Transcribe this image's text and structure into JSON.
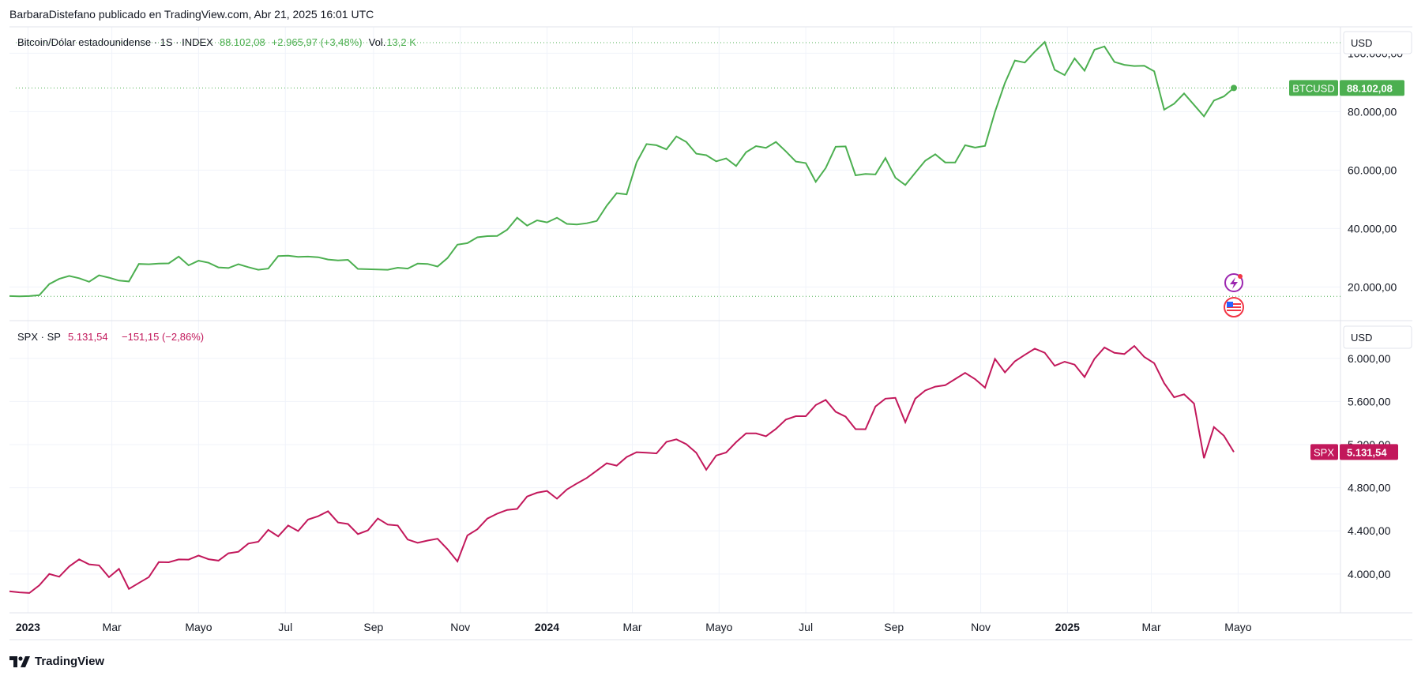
{
  "header": {
    "attribution": "BarbaraDistefano publicado en TradingView.com, Abr 21, 2025 16:01 UTC"
  },
  "footer": {
    "brand": "TradingView"
  },
  "colors": {
    "btc": "#4caf50",
    "spx": "#c2185b",
    "grid": "#f0f3fa",
    "axis_text": "#131722"
  },
  "panes": {
    "top": {
      "symbol": "Bitcoin/Dólar estadounidense · 1S · INDEX",
      "last": "88.102,08",
      "change": "+2.965,97 (+3,48%)",
      "vol_label": "Vol.",
      "vol_value": "13,2 K",
      "currency": "USD",
      "tag_name": "BTCUSD",
      "tag_value": "88.102,08"
    },
    "bottom": {
      "symbol": "SPX · SP",
      "last": "5.131,54",
      "change": "−151,15 (−2,86%)",
      "currency": "USD",
      "tag_name": "SPX",
      "tag_value": "5.131,54"
    }
  },
  "icons": {
    "top_1": "lightning-icon",
    "top_2": "us-flag-icon"
  },
  "chart_data": [
    {
      "type": "line",
      "title": "Bitcoin/Dólar estadounidense · 1S · INDEX",
      "series": [
        {
          "name": "BTCUSD",
          "values": [
            16900,
            16800,
            16900,
            17200,
            21000,
            22800,
            23800,
            23000,
            21800,
            24000,
            23200,
            22200,
            21900,
            27900,
            27800,
            28000,
            28100,
            30400,
            27400,
            29000,
            28300,
            26700,
            26500,
            27800,
            26800,
            25900,
            26300,
            30600,
            30700,
            30300,
            30400,
            30200,
            29400,
            29100,
            29300,
            26200,
            26100,
            26000,
            25900,
            26600,
            26300,
            28000,
            27900,
            27000,
            29900,
            34500,
            35000,
            37000,
            37400,
            37500,
            39600,
            43700,
            41000,
            42800,
            42100,
            43700,
            41600,
            41400,
            41800,
            42600,
            47800,
            52100,
            51700,
            62600,
            68900,
            68500,
            67100,
            71500,
            69600,
            65600,
            65100,
            63000,
            64000,
            61400,
            66100,
            68200,
            67600,
            69600,
            66400,
            62900,
            62400,
            56000,
            60700,
            68000,
            68100,
            58200,
            58700,
            58500,
            64100,
            57400,
            54900,
            59100,
            63200,
            65400,
            62600,
            62600,
            68500,
            67700,
            68300,
            79900,
            89800,
            97500,
            96800,
            100500,
            103800,
            94300,
            92500,
            98200,
            94000,
            101200,
            102300,
            97000,
            96000,
            95600,
            95700,
            93800,
            80700,
            82700,
            86200,
            82300,
            78400,
            83800,
            85200,
            88100
          ]
        }
      ],
      "x_start": "2022-12-19",
      "x_step_days": 7,
      "x_ticks": [
        {
          "label": "2023",
          "date": "2023-01-01",
          "bold": true
        },
        {
          "label": "Mar",
          "date": "2023-03-01"
        },
        {
          "label": "Mayo",
          "date": "2023-05-01"
        },
        {
          "label": "Jul",
          "date": "2023-07-01"
        },
        {
          "label": "Sep",
          "date": "2023-09-01"
        },
        {
          "label": "Nov",
          "date": "2023-11-01"
        },
        {
          "label": "2024",
          "date": "2024-01-01",
          "bold": true
        },
        {
          "label": "Mar",
          "date": "2024-03-01"
        },
        {
          "label": "Mayo",
          "date": "2024-05-01"
        },
        {
          "label": "Jul",
          "date": "2024-07-01"
        },
        {
          "label": "Sep",
          "date": "2024-09-01"
        },
        {
          "label": "Nov",
          "date": "2024-11-01"
        },
        {
          "label": "2025",
          "date": "2025-01-01",
          "bold": true
        },
        {
          "label": "Mar",
          "date": "2025-03-01"
        },
        {
          "label": "Mayo",
          "date": "2025-05-01"
        }
      ],
      "y_ticks": [
        {
          "label": "20.000,00",
          "value": 20000
        },
        {
          "label": "40.000,00",
          "value": 40000
        },
        {
          "label": "60.000,00",
          "value": 60000
        },
        {
          "label": "80.000,00",
          "value": 80000
        },
        {
          "label": "100.000,00",
          "value": 100000
        }
      ],
      "ylim": [
        8500,
        109000
      ],
      "grid": true
    },
    {
      "type": "line",
      "title": "SPX · SP",
      "series": [
        {
          "name": "SPX",
          "values": [
            3840,
            3830,
            3824,
            3895,
            4000,
            3975,
            4070,
            4136,
            4090,
            4080,
            3970,
            4048,
            3862,
            3917,
            3971,
            4110,
            4109,
            4135,
            4134,
            4171,
            4137,
            4124,
            4192,
            4206,
            4282,
            4299,
            4409,
            4349,
            4450,
            4398,
            4505,
            4536,
            4582,
            4478,
            4464,
            4370,
            4405,
            4515,
            4458,
            4450,
            4320,
            4290,
            4310,
            4327,
            4230,
            4117,
            4358,
            4415,
            4514,
            4560,
            4594,
            4604,
            4719,
            4754,
            4770,
            4698,
            4784,
            4840,
            4891,
            4959,
            5027,
            5005,
            5085,
            5130,
            5125,
            5119,
            5226,
            5249,
            5204,
            5124,
            4967,
            5099,
            5127,
            5223,
            5304,
            5304,
            5278,
            5346,
            5432,
            5464,
            5464,
            5567,
            5615,
            5505,
            5459,
            5344,
            5343,
            5554,
            5626,
            5634,
            5408,
            5626,
            5702,
            5738,
            5751,
            5808,
            5865,
            5808,
            5728,
            5995,
            5870,
            5973,
            6033,
            6090,
            6052,
            5931,
            5969,
            5942,
            5827,
            5996,
            6101,
            6051,
            6040,
            6115,
            6013,
            5955,
            5770,
            5639,
            5667,
            5581,
            5074,
            5363,
            5282,
            5131
          ]
        }
      ],
      "x_start": "2022-12-19",
      "x_step_days": 7,
      "y_ticks": [
        {
          "label": "4.000,00",
          "value": 4000
        },
        {
          "label": "4.400,00",
          "value": 4400
        },
        {
          "label": "4.800,00",
          "value": 4800
        },
        {
          "label": "5.200,00",
          "value": 5200
        },
        {
          "label": "5.600,00",
          "value": 5600
        },
        {
          "label": "6.000,00",
          "value": 6000
        }
      ],
      "ylim": [
        3640,
        6350
      ],
      "grid": true
    }
  ]
}
